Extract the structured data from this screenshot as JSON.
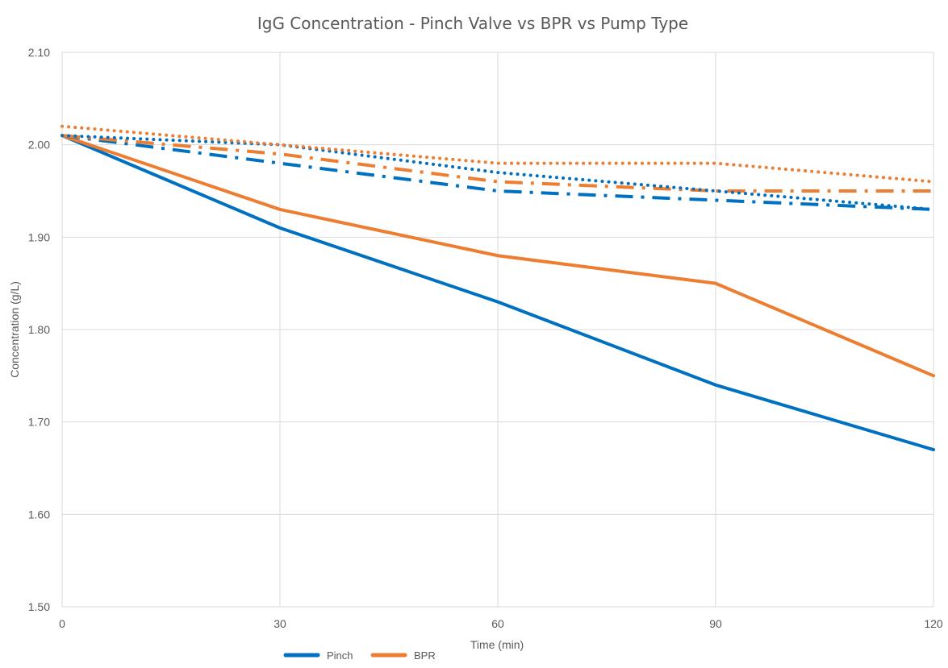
{
  "chart_data": {
    "type": "line",
    "title": "IgG Concentration - Pinch Valve vs BPR vs Pump Type",
    "xlabel": "Time (min)",
    "ylabel": "Concentration (g/L)",
    "xlim": [
      0,
      120
    ],
    "ylim": [
      1.5,
      2.1
    ],
    "x_ticks": [
      "0",
      "30",
      "60",
      "90",
      "120"
    ],
    "y_ticks": [
      "1.50",
      "1.60",
      "1.70",
      "1.80",
      "1.90",
      "2.00",
      "2.10"
    ],
    "grid": true,
    "legend_position": "bottom",
    "series": [
      {
        "name": "Pinch",
        "color": "#0070C0",
        "style": "solid",
        "x": [
          0,
          30,
          60,
          90,
          120
        ],
        "values": [
          2.01,
          1.91,
          1.83,
          1.74,
          1.67
        ],
        "legend": true
      },
      {
        "name": "BPR",
        "color": "#ED7D31",
        "style": "solid",
        "x": [
          0,
          30,
          60,
          90,
          120
        ],
        "values": [
          2.01,
          1.93,
          1.88,
          1.85,
          1.75
        ],
        "legend": true
      },
      {
        "color": "#0070C0",
        "style": "dashdot",
        "x": [
          0,
          30,
          60,
          90,
          120
        ],
        "values": [
          2.01,
          1.98,
          1.95,
          1.94,
          1.93
        ]
      },
      {
        "color": "#ED7D31",
        "style": "dashdot",
        "x": [
          0,
          30,
          60,
          90,
          120
        ],
        "values": [
          2.01,
          1.99,
          1.96,
          1.95,
          1.95
        ]
      },
      {
        "color": "#0070C0",
        "style": "dotted",
        "x": [
          0,
          30,
          60,
          90,
          120
        ],
        "values": [
          2.01,
          2.0,
          1.97,
          1.95,
          1.93
        ]
      },
      {
        "color": "#ED7D31",
        "style": "dotted",
        "x": [
          0,
          30,
          60,
          90,
          120
        ],
        "values": [
          2.02,
          2.0,
          1.98,
          1.98,
          1.96
        ]
      }
    ]
  }
}
